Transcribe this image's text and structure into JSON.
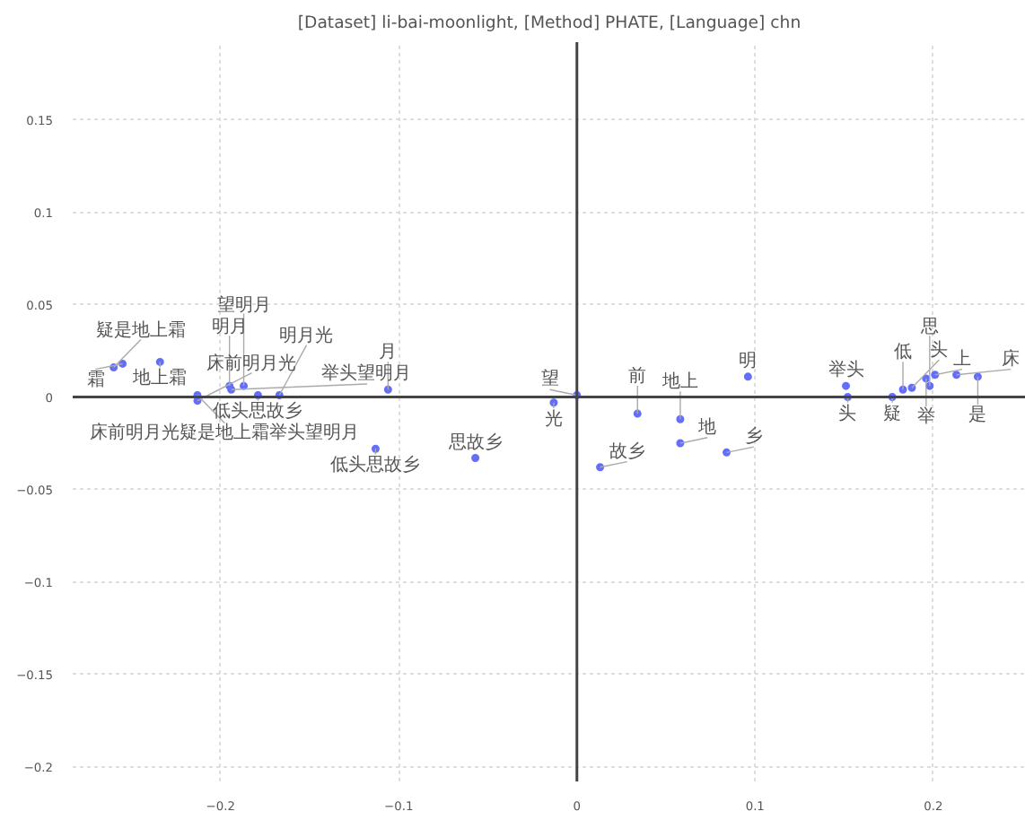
{
  "chart_data": {
    "type": "scatter",
    "title": "[Dataset] li-bai-moonlight, [Method] PHATE, [Language] chn",
    "x": [
      -0.26,
      -0.255,
      -0.234,
      -0.213,
      -0.213,
      -0.195,
      -0.194,
      -0.187,
      -0.179,
      -0.167,
      -0.106,
      -0.113,
      -0.057,
      -0.013,
      0.0,
      0.013,
      0.034,
      0.058,
      0.058,
      0.084,
      0.096,
      0.151,
      0.152,
      0.177,
      0.183,
      0.188,
      0.196,
      0.198,
      0.201,
      0.213,
      0.225
    ],
    "series": [
      {
        "color": "#636efa",
        "values": [
          0.016,
          0.018,
          0.019,
          0.001,
          -0.002,
          0.006,
          0.004,
          0.006,
          0.001,
          0.001,
          0.004,
          -0.028,
          -0.033,
          -0.003,
          0.001,
          -0.038,
          -0.009,
          -0.012,
          -0.025,
          -0.03,
          0.011,
          0.006,
          0.0,
          0.0,
          0.004,
          0.005,
          0.01,
          0.006,
          0.012,
          0.012,
          0.011
        ]
      }
    ],
    "annotations": [
      {
        "text": "疑是地上霜",
        "x": -0.26,
        "y": 0.016
      },
      {
        "text": "霜",
        "x": -0.255,
        "y": 0.018
      },
      {
        "text": "地上霜",
        "x": -0.234,
        "y": 0.019
      },
      {
        "text": "床前明月光疑是地上霜举头望明月",
        "x": -0.213,
        "y": 0.001
      },
      {
        "text": "床前明月光",
        "x": -0.213,
        "y": -0.002
      },
      {
        "text": "明月",
        "x": -0.195,
        "y": 0.006
      },
      {
        "text": "举头望明月",
        "x": -0.194,
        "y": 0.004
      },
      {
        "text": "望明月",
        "x": -0.187,
        "y": 0.006
      },
      {
        "text": "低头思故乡",
        "x": -0.179,
        "y": 0.001
      },
      {
        "text": "明月光",
        "x": -0.167,
        "y": 0.001
      },
      {
        "text": "月",
        "x": -0.106,
        "y": 0.004
      },
      {
        "text": "低头思故乡",
        "x": -0.113,
        "y": -0.028
      },
      {
        "text": "思故乡",
        "x": -0.057,
        "y": -0.033
      },
      {
        "text": "光",
        "x": -0.013,
        "y": -0.003
      },
      {
        "text": "望",
        "x": 0.0,
        "y": 0.001
      },
      {
        "text": "故乡",
        "x": 0.013,
        "y": -0.038
      },
      {
        "text": "前",
        "x": 0.034,
        "y": -0.009
      },
      {
        "text": "地上",
        "x": 0.058,
        "y": -0.012
      },
      {
        "text": "地",
        "x": 0.058,
        "y": -0.025
      },
      {
        "text": "乡",
        "x": 0.084,
        "y": -0.03
      },
      {
        "text": "明",
        "x": 0.096,
        "y": 0.011
      },
      {
        "text": "举头",
        "x": 0.151,
        "y": 0.006
      },
      {
        "text": "头",
        "x": 0.152,
        "y": 0.0
      },
      {
        "text": "疑",
        "x": 0.177,
        "y": 0.0
      },
      {
        "text": "低",
        "x": 0.183,
        "y": 0.004
      },
      {
        "text": "头",
        "x": 0.188,
        "y": 0.005
      },
      {
        "text": "举",
        "x": 0.196,
        "y": 0.01
      },
      {
        "text": "思",
        "x": 0.198,
        "y": 0.006
      },
      {
        "text": "上",
        "x": 0.201,
        "y": 0.012
      },
      {
        "text": "床",
        "x": 0.213,
        "y": 0.012
      },
      {
        "text": "是",
        "x": 0.225,
        "y": 0.011
      }
    ],
    "xlim": [
      -0.283,
      0.252
    ],
    "ylim": [
      -0.208,
      0.192
    ],
    "xticks": [
      {
        "value": -0.2,
        "label": "−0.2"
      },
      {
        "value": -0.1,
        "label": "−0.1"
      },
      0,
      0.1,
      0.2
    ],
    "yticks": [
      {
        "value": -0.2,
        "label": "−0.2"
      },
      {
        "value": -0.15,
        "label": "−0.15"
      },
      {
        "value": -0.1,
        "label": "−0.1"
      },
      {
        "value": -0.05,
        "label": "−0.05"
      },
      0,
      0.05,
      0.1,
      0.15
    ],
    "grid": true,
    "marker": "circle"
  }
}
